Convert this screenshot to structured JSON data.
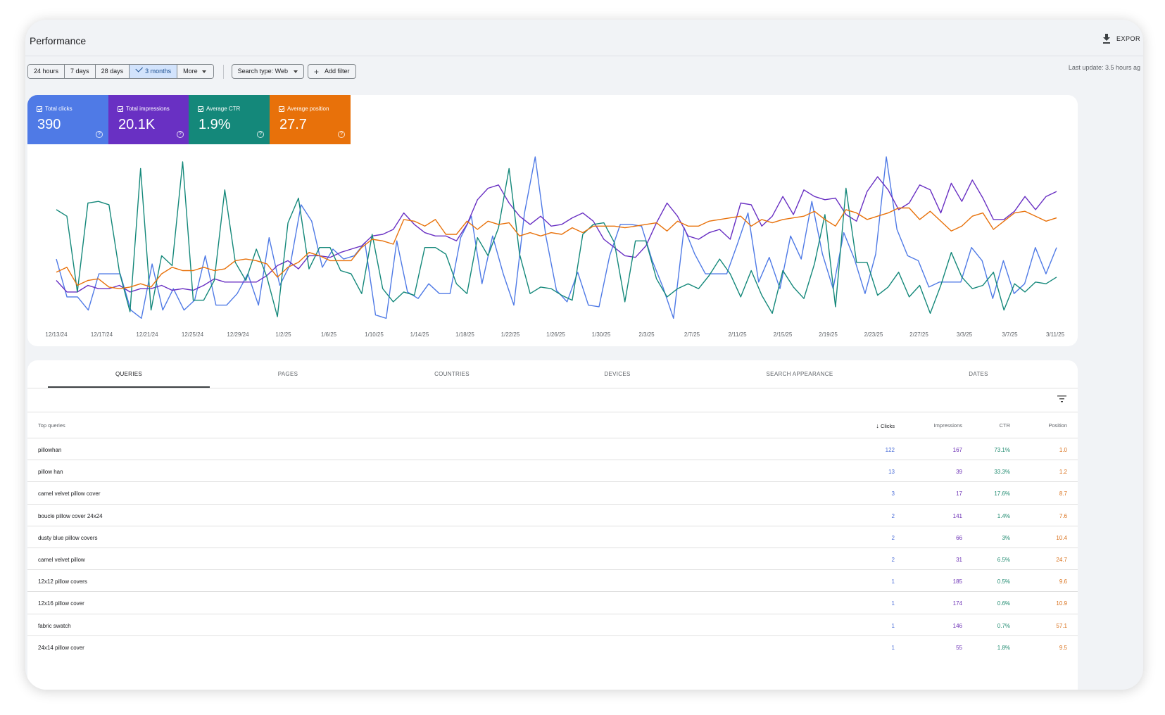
{
  "header": {
    "title": "Performance",
    "export_label": "EXPOR"
  },
  "filters": {
    "ranges": [
      "24 hours",
      "7 days",
      "28 days",
      "3 months"
    ],
    "active_range": "3 months",
    "more_label": "More",
    "search_type": "Search type: Web",
    "add_filter": "Add filter",
    "last_update": "Last update: 3.5 hours ag"
  },
  "metrics": [
    {
      "label": "Total clicks",
      "value": "390",
      "color": "#4f7ae6"
    },
    {
      "label": "Total impressions",
      "value": "20.1K",
      "color": "#6930c3"
    },
    {
      "label": "Average CTR",
      "value": "1.9%",
      "color": "#14887a"
    },
    {
      "label": "Average position",
      "value": "27.7",
      "color": "#e8710a"
    }
  ],
  "chart_data": {
    "type": "line",
    "title": "",
    "x_tick_labels": [
      "12/13/24",
      "12/17/24",
      "12/21/24",
      "12/25/24",
      "12/29/24",
      "1/2/25",
      "1/6/25",
      "1/10/25",
      "1/14/25",
      "1/18/25",
      "1/22/25",
      "1/26/25",
      "1/30/25",
      "2/3/25",
      "2/7/25",
      "2/11/25",
      "2/15/25",
      "2/19/25",
      "2/23/25",
      "2/27/25",
      "3/3/25",
      "3/7/25",
      "3/11/25"
    ],
    "note": "values normalized 0-1 (relative to each series max); unlabeled axes",
    "series": [
      {
        "name": "Total clicks",
        "color": "#4f7ae6",
        "values": [
          0.38,
          0.15,
          0.15,
          0.07,
          0.29,
          0.29,
          0.29,
          0.07,
          0.02,
          0.35,
          0.07,
          0.2,
          0.07,
          0.13,
          0.4,
          0.1,
          0.1,
          0.17,
          0.29,
          0.1,
          0.51,
          0.22,
          0.35,
          0.71,
          0.61,
          0.33,
          0.44,
          0.38,
          0.4,
          0.48,
          0.04,
          0.02,
          0.49,
          0.18,
          0.14,
          0.23,
          0.17,
          0.17,
          0.51,
          0.64,
          0.23,
          0.52,
          0.29,
          0.1,
          0.66,
          1.0,
          0.52,
          0.19,
          0.12,
          0.3,
          0.1,
          0.09,
          0.4,
          0.59,
          0.59,
          0.58,
          0.37,
          0.21,
          0.02,
          0.57,
          0.41,
          0.29,
          0.29,
          0.29,
          0.47,
          0.66,
          0.24,
          0.39,
          0.2,
          0.52,
          0.38,
          0.73,
          0.41,
          0.2,
          0.54,
          0.38,
          0.17,
          0.41,
          1.0,
          0.56,
          0.4,
          0.37,
          0.21,
          0.24,
          0.24,
          0.24,
          0.45,
          0.37,
          0.14,
          0.37,
          0.17,
          0.23,
          0.45,
          0.29,
          0.45
        ]
      },
      {
        "name": "Total impressions",
        "color": "#6930c3",
        "values": [
          0.25,
          0.18,
          0.18,
          0.22,
          0.2,
          0.2,
          0.22,
          0.18,
          0.2,
          0.2,
          0.22,
          0.19,
          0.2,
          0.19,
          0.22,
          0.26,
          0.24,
          0.24,
          0.24,
          0.24,
          0.28,
          0.34,
          0.37,
          0.32,
          0.4,
          0.4,
          0.39,
          0.42,
          0.44,
          0.46,
          0.52,
          0.53,
          0.56,
          0.66,
          0.59,
          0.54,
          0.52,
          0.52,
          0.49,
          0.59,
          0.74,
          0.81,
          0.83,
          0.72,
          0.64,
          0.59,
          0.64,
          0.58,
          0.59,
          0.63,
          0.66,
          0.61,
          0.5,
          0.45,
          0.4,
          0.39,
          0.46,
          0.6,
          0.72,
          0.64,
          0.52,
          0.5,
          0.54,
          0.56,
          0.5,
          0.72,
          0.71,
          0.58,
          0.64,
          0.76,
          0.65,
          0.8,
          0.76,
          0.74,
          0.75,
          0.65,
          0.61,
          0.79,
          0.88,
          0.8,
          0.68,
          0.72,
          0.83,
          0.8,
          0.66,
          0.84,
          0.73,
          0.86,
          0.75,
          0.62,
          0.62,
          0.67,
          0.76,
          0.68,
          0.76,
          0.79
        ]
      },
      {
        "name": "Average CTR",
        "color": "#14887a",
        "values": [
          0.68,
          0.64,
          0.18,
          0.72,
          0.73,
          0.71,
          0.3,
          0.06,
          0.93,
          0.07,
          0.4,
          0.34,
          0.97,
          0.13,
          0.13,
          0.25,
          0.8,
          0.36,
          0.25,
          0.44,
          0.27,
          0.03,
          0.6,
          0.75,
          0.32,
          0.45,
          0.45,
          0.31,
          0.29,
          0.17,
          0.53,
          0.2,
          0.12,
          0.18,
          0.16,
          0.45,
          0.45,
          0.41,
          0.23,
          0.17,
          0.51,
          0.4,
          0.57,
          0.93,
          0.41,
          0.17,
          0.21,
          0.2,
          0.16,
          0.13,
          0.53,
          0.59,
          0.6,
          0.48,
          0.12,
          0.49,
          0.49,
          0.26,
          0.15,
          0.2,
          0.23,
          0.2,
          0.28,
          0.38,
          0.29,
          0.15,
          0.31,
          0.16,
          0.05,
          0.31,
          0.21,
          0.14,
          0.35,
          0.65,
          0.09,
          0.81,
          0.36,
          0.36,
          0.16,
          0.21,
          0.3,
          0.15,
          0.22,
          0.05,
          0.22,
          0.42,
          0.27,
          0.2,
          0.22,
          0.3,
          0.07,
          0.23,
          0.18,
          0.24,
          0.23,
          0.27
        ]
      },
      {
        "name": "Average position",
        "color": "#e8710a",
        "values": [
          0.3,
          0.33,
          0.22,
          0.25,
          0.26,
          0.21,
          0.2,
          0.21,
          0.23,
          0.21,
          0.29,
          0.33,
          0.31,
          0.31,
          0.33,
          0.31,
          0.32,
          0.37,
          0.38,
          0.37,
          0.35,
          0.27,
          0.33,
          0.36,
          0.42,
          0.4,
          0.37,
          0.37,
          0.37,
          0.45,
          0.5,
          0.49,
          0.47,
          0.62,
          0.61,
          0.58,
          0.62,
          0.53,
          0.53,
          0.61,
          0.56,
          0.61,
          0.59,
          0.6,
          0.52,
          0.54,
          0.52,
          0.54,
          0.53,
          0.57,
          0.54,
          0.58,
          0.58,
          0.58,
          0.57,
          0.58,
          0.59,
          0.6,
          0.55,
          0.61,
          0.58,
          0.58,
          0.61,
          0.62,
          0.63,
          0.64,
          0.58,
          0.62,
          0.6,
          0.62,
          0.63,
          0.64,
          0.67,
          0.62,
          0.58,
          0.68,
          0.66,
          0.62,
          0.64,
          0.66,
          0.69,
          0.69,
          0.62,
          0.67,
          0.61,
          0.55,
          0.58,
          0.64,
          0.66,
          0.56,
          0.61,
          0.66,
          0.67,
          0.64,
          0.61,
          0.63
        ]
      }
    ]
  },
  "tabs": [
    "QUERIES",
    "PAGES",
    "COUNTRIES",
    "DEVICES",
    "SEARCH APPEARANCE",
    "DATES"
  ],
  "active_tab": "QUERIES",
  "table": {
    "columns": {
      "query": "Top queries",
      "clicks": "Clicks",
      "impressions": "Impressions",
      "ctr": "CTR",
      "position": "Position"
    },
    "rows": [
      {
        "query": "pillowhan",
        "clicks": "122",
        "impressions": "167",
        "ctr": "73.1%",
        "position": "1.0"
      },
      {
        "query": "pillow han",
        "clicks": "13",
        "impressions": "39",
        "ctr": "33.3%",
        "position": "1.2"
      },
      {
        "query": "camel velvet pillow cover",
        "clicks": "3",
        "impressions": "17",
        "ctr": "17.6%",
        "position": "8.7"
      },
      {
        "query": "boucle pillow cover 24x24",
        "clicks": "2",
        "impressions": "141",
        "ctr": "1.4%",
        "position": "7.6"
      },
      {
        "query": "dusty blue pillow covers",
        "clicks": "2",
        "impressions": "66",
        "ctr": "3%",
        "position": "10.4"
      },
      {
        "query": "camel velvet pillow",
        "clicks": "2",
        "impressions": "31",
        "ctr": "6.5%",
        "position": "24.7"
      },
      {
        "query": "12x12 pillow covers",
        "clicks": "1",
        "impressions": "185",
        "ctr": "0.5%",
        "position": "9.6"
      },
      {
        "query": "12x16 pillow cover",
        "clicks": "1",
        "impressions": "174",
        "ctr": "0.6%",
        "position": "10.9"
      },
      {
        "query": "fabric swatch",
        "clicks": "1",
        "impressions": "146",
        "ctr": "0.7%",
        "position": "57.1"
      },
      {
        "query": "24x14 pillow cover",
        "clicks": "1",
        "impressions": "55",
        "ctr": "1.8%",
        "position": "9.5"
      }
    ]
  }
}
